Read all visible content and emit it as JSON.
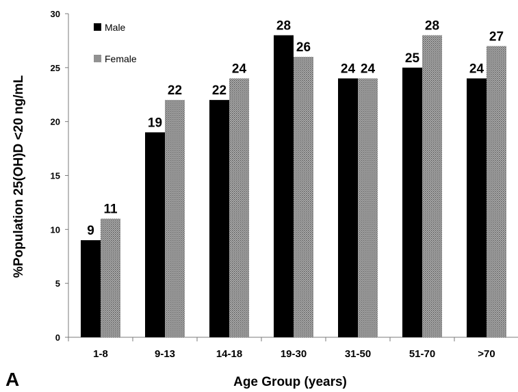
{
  "panel_label": "A",
  "chart_data": {
    "type": "bar",
    "categories": [
      "1-8",
      "9-13",
      "14-18",
      "19-30",
      "31-50",
      "51-70",
      ">70"
    ],
    "series": [
      {
        "name": "Male",
        "values": [
          9,
          19,
          22,
          28,
          24,
          25,
          24
        ],
        "color": "#000000",
        "pattern": "solid"
      },
      {
        "name": "Female",
        "values": [
          11,
          22,
          24,
          26,
          24,
          28,
          27
        ],
        "color": "#a8a8a8",
        "pattern": "dotted"
      }
    ],
    "xlabel": "Age Group (years)",
    "ylabel": "%Population 25(OH)D <20 ng/mL",
    "ylim": [
      0,
      30
    ],
    "yticks": [
      0,
      5,
      10,
      15,
      20,
      25,
      30
    ],
    "grid": false,
    "legend_position": "top-left",
    "data_labels": true
  }
}
